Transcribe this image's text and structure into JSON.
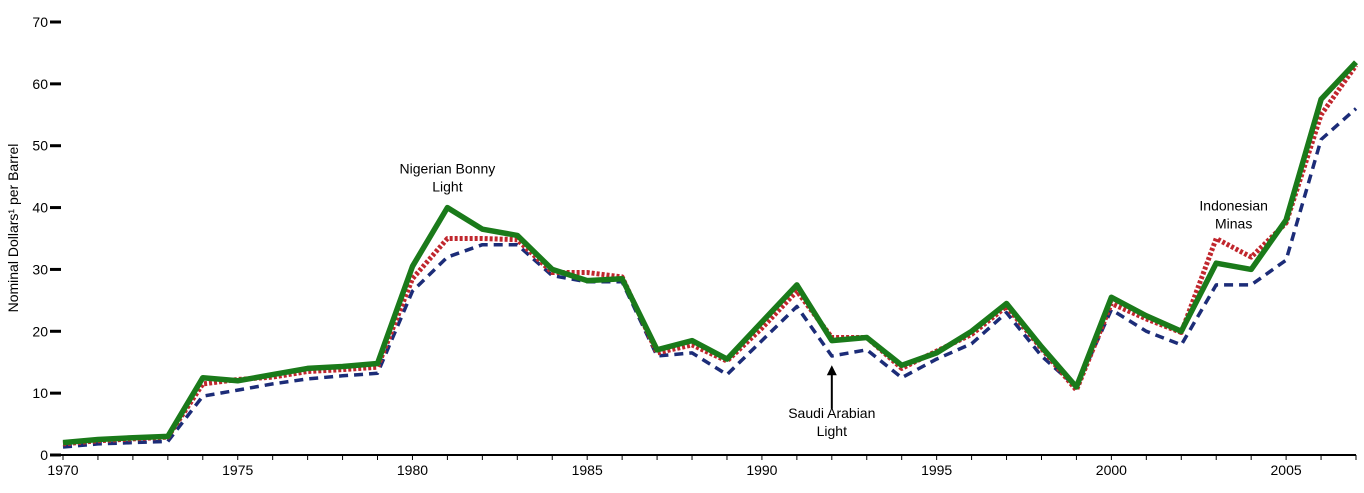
{
  "chart_data": {
    "type": "line",
    "title": "",
    "xlabel": "",
    "ylabel": "Nominal Dollars¹ per Barrel",
    "xlim": [
      1970,
      2007
    ],
    "ylim": [
      0,
      70
    ],
    "x_ticks": [
      "1970",
      "1975",
      "1980",
      "1985",
      "1990",
      "1995",
      "2000",
      "2005"
    ],
    "y_ticks": [
      "0",
      "10",
      "20",
      "30",
      "40",
      "50",
      "60",
      "70"
    ],
    "grid": false,
    "legend": "none",
    "x": [
      1970,
      1971,
      1972,
      1973,
      1974,
      1975,
      1976,
      1977,
      1978,
      1979,
      1980,
      1981,
      1982,
      1983,
      1984,
      1985,
      1986,
      1987,
      1988,
      1989,
      1990,
      1991,
      1992,
      1993,
      1994,
      1995,
      1996,
      1997,
      1998,
      1999,
      2000,
      2001,
      2002,
      2003,
      2004,
      2005,
      2006,
      2007
    ],
    "series": [
      {
        "color": "#1a7a1a",
        "style": "solid",
        "values": [
          2.0,
          2.5,
          2.8,
          3.0,
          12.5,
          12.0,
          13.0,
          14.0,
          14.3,
          14.8,
          30.5,
          40.0,
          36.5,
          35.5,
          30.0,
          28.2,
          28.5,
          17.0,
          18.5,
          15.5,
          21.5,
          27.5,
          18.5,
          19.0,
          14.5,
          16.5,
          20.0,
          24.5,
          17.5,
          11.0,
          25.5,
          22.5,
          20.0,
          31.0,
          30.0,
          38.0,
          57.5,
          63.5
        ]
      },
      {
        "color": "#c0262d",
        "style": "dotted",
        "values": [
          1.8,
          2.3,
          2.6,
          2.9,
          11.5,
          12.2,
          12.6,
          13.5,
          13.8,
          14.2,
          28.5,
          35.0,
          35.0,
          34.8,
          29.5,
          29.5,
          28.8,
          16.5,
          17.8,
          15.2,
          20.5,
          26.5,
          19.0,
          19.0,
          14.0,
          16.8,
          19.5,
          24.0,
          17.2,
          10.5,
          24.5,
          22.0,
          19.8,
          35.0,
          32.0,
          37.5,
          55.0,
          63.0
        ]
      },
      {
        "color": "#1c2c78",
        "style": "dashed",
        "values": [
          1.3,
          1.8,
          2.0,
          2.2,
          9.5,
          10.5,
          11.5,
          12.3,
          12.8,
          13.2,
          26.5,
          32.0,
          34.0,
          34.0,
          29.0,
          28.0,
          28.0,
          16.0,
          16.5,
          13.0,
          18.5,
          24.0,
          16.0,
          17.0,
          12.5,
          15.5,
          18.0,
          23.0,
          16.0,
          11.0,
          23.5,
          20.0,
          17.8,
          27.5,
          27.5,
          31.5,
          51.0,
          56.0
        ]
      }
    ],
    "annotations": [
      {
        "lines": [
          "Nigerian Bonny",
          "Light"
        ],
        "x": 1981,
        "y": 45.5,
        "arrow": false
      },
      {
        "lines": [
          "Indonesian",
          "Minas"
        ],
        "x": 2003.5,
        "y": 39.5,
        "arrow": false
      },
      {
        "lines": [
          "Saudi Arabian",
          "Light"
        ],
        "x": 1992,
        "y": 6.0,
        "arrow": true,
        "arrow_from": 7.5,
        "arrow_to": 14.5
      }
    ]
  }
}
